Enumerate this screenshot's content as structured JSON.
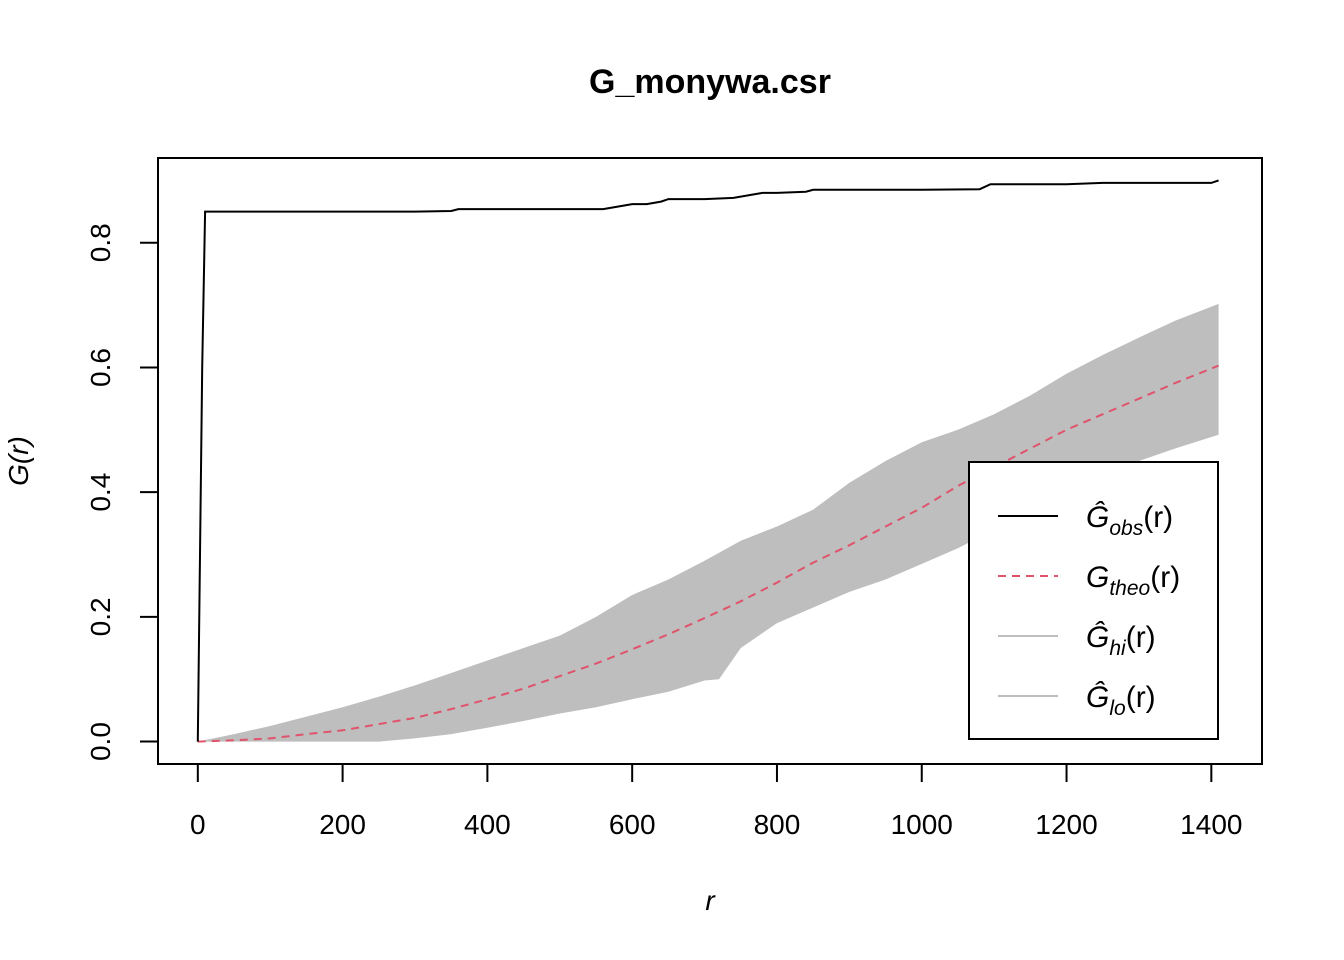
{
  "chart_data": {
    "type": "line",
    "title": "G_monywa.csr",
    "xlabel": "r",
    "ylabel": "G(r)",
    "xlim": [
      -55,
      1470
    ],
    "ylim": [
      -0.036,
      0.936
    ],
    "x_ticks": [
      0,
      200,
      400,
      600,
      800,
      1000,
      1200,
      1400
    ],
    "y_ticks": [
      0.0,
      0.2,
      0.4,
      0.6,
      0.8
    ],
    "x_tick_labels": [
      "0",
      "200",
      "400",
      "600",
      "800",
      "1000",
      "1200",
      "1400"
    ],
    "y_tick_labels": [
      "0.0",
      "0.2",
      "0.4",
      "0.6",
      "0.8"
    ],
    "legend_position": "bottom-right",
    "colors": {
      "obs": "#000000",
      "theo": "#DF536B",
      "band": "#BEBEBE",
      "frame": "#000000"
    },
    "series": [
      {
        "name": "obs",
        "legend": {
          "main": "Ĝ",
          "sub": "obs",
          "tail": "(r)"
        },
        "style": "solid",
        "x": [
          0,
          3,
          6,
          10,
          100,
          200,
          300,
          350,
          360,
          400,
          500,
          560,
          580,
          600,
          620,
          640,
          650,
          700,
          740,
          760,
          780,
          800,
          840,
          850,
          900,
          1000,
          1080,
          1095,
          1100,
          1200,
          1250,
          1300,
          1400,
          1410
        ],
        "y": [
          0.0,
          0.3,
          0.6,
          0.85,
          0.85,
          0.85,
          0.85,
          0.851,
          0.854,
          0.854,
          0.854,
          0.854,
          0.858,
          0.862,
          0.862,
          0.866,
          0.87,
          0.87,
          0.872,
          0.876,
          0.88,
          0.88,
          0.882,
          0.885,
          0.885,
          0.885,
          0.886,
          0.894,
          0.894,
          0.894,
          0.896,
          0.896,
          0.896,
          0.9
        ]
      },
      {
        "name": "theo",
        "legend": {
          "main": "G",
          "sub": "theo",
          "tail": "(r)"
        },
        "style": "dashed",
        "x": [
          0,
          50,
          100,
          150,
          200,
          250,
          300,
          350,
          400,
          450,
          500,
          550,
          600,
          650,
          700,
          750,
          800,
          850,
          900,
          950,
          1000,
          1050,
          1100,
          1150,
          1200,
          1250,
          1300,
          1350,
          1410
        ],
        "y": [
          0.0,
          0.002,
          0.005,
          0.012,
          0.018,
          0.028,
          0.038,
          0.052,
          0.068,
          0.085,
          0.105,
          0.125,
          0.148,
          0.172,
          0.198,
          0.225,
          0.255,
          0.287,
          0.315,
          0.345,
          0.375,
          0.41,
          0.44,
          0.47,
          0.5,
          0.525,
          0.55,
          0.575,
          0.603
        ]
      },
      {
        "name": "hi",
        "legend": {
          "main": "Ĝ",
          "sub": "hi",
          "tail": "(r)"
        },
        "style": "band-upper",
        "x": [
          0,
          50,
          100,
          150,
          200,
          250,
          300,
          350,
          400,
          450,
          500,
          550,
          600,
          650,
          700,
          750,
          800,
          850,
          900,
          950,
          1000,
          1050,
          1100,
          1150,
          1200,
          1250,
          1300,
          1350,
          1410
        ],
        "y": [
          0.0,
          0.012,
          0.025,
          0.04,
          0.055,
          0.072,
          0.09,
          0.11,
          0.13,
          0.15,
          0.17,
          0.2,
          0.235,
          0.26,
          0.29,
          0.322,
          0.345,
          0.372,
          0.415,
          0.45,
          0.48,
          0.5,
          0.525,
          0.555,
          0.59,
          0.62,
          0.648,
          0.675,
          0.702
        ]
      },
      {
        "name": "lo",
        "legend": {
          "main": "Ĝ",
          "sub": "lo",
          "tail": "(r)"
        },
        "style": "band-lower",
        "x": [
          0,
          50,
          100,
          150,
          200,
          250,
          300,
          350,
          400,
          450,
          500,
          550,
          600,
          650,
          700,
          720,
          750,
          800,
          850,
          900,
          950,
          1000,
          1050,
          1100,
          1150,
          1200,
          1250,
          1300,
          1350,
          1410
        ],
        "y": [
          0.0,
          0.0,
          0.0,
          0.0,
          0.0,
          0.0,
          0.005,
          0.012,
          0.022,
          0.033,
          0.045,
          0.055,
          0.068,
          0.08,
          0.098,
          0.1,
          0.15,
          0.19,
          0.215,
          0.24,
          0.26,
          0.285,
          0.31,
          0.34,
          0.372,
          0.4,
          0.425,
          0.45,
          0.47,
          0.492
        ]
      }
    ]
  }
}
